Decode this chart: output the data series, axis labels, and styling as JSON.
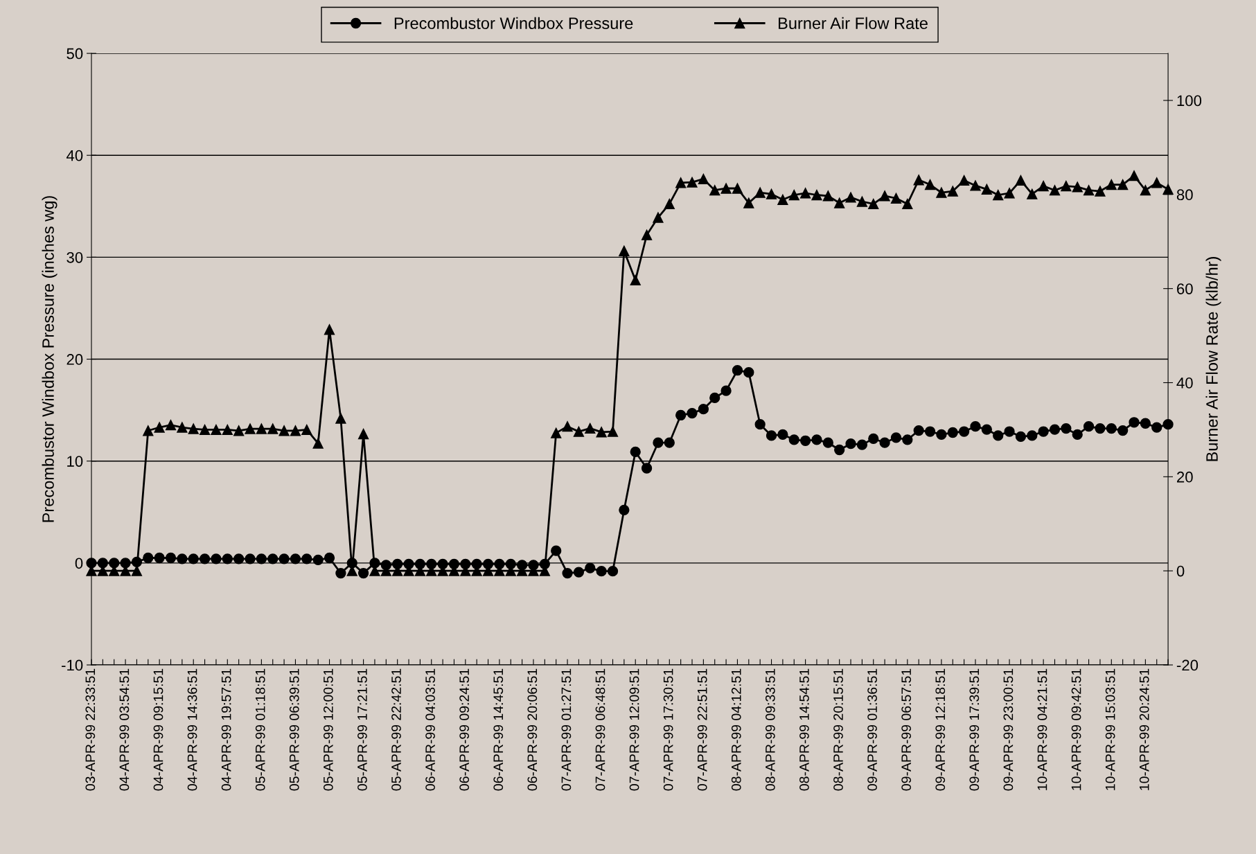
{
  "chart_data": {
    "type": "line",
    "ylabel": "Precombustor Windbox Pressure (inches wg)",
    "y2label": "Burner Air Flow Rate (klb/hr)",
    "categories": [
      "03-APR-99 22:33:51",
      null,
      null,
      "04-APR-99 03:54:51",
      null,
      null,
      "04-APR-99 09:15:51",
      null,
      null,
      "04-APR-99 14:36:51",
      null,
      null,
      "04-APR-99 19:57:51",
      null,
      null,
      "05-APR-99 01:18:51",
      null,
      null,
      "05-APR-99 06:39:51",
      null,
      null,
      "05-APR-99 12:00:51",
      null,
      null,
      "05-APR-99 17:21:51",
      null,
      null,
      "05-APR-99 22:42:51",
      null,
      null,
      "06-APR-99 04:03:51",
      null,
      null,
      "06-APR-99 09:24:51",
      null,
      null,
      "06-APR-99 14:45:51",
      null,
      null,
      "06-APR-99 20:06:51",
      null,
      null,
      "07-APR-99 01:27:51",
      null,
      null,
      "07-APR-99 06:48:51",
      null,
      null,
      "07-APR-99 12:09:51",
      null,
      null,
      "07-APR-99 17:30:51",
      null,
      null,
      "07-APR-99 22:51:51",
      null,
      null,
      "08-APR-99 04:12:51",
      null,
      null,
      "08-APR-99 09:33:51",
      null,
      null,
      "08-APR-99 14:54:51",
      null,
      null,
      "08-APR-99 20:15:51",
      null,
      null,
      "09-APR-99 01:36:51",
      null,
      null,
      "09-APR-99 06:57:51",
      null,
      null,
      "09-APR-99 12:18:51",
      null,
      null,
      "09-APR-99 17:39:51",
      null,
      null,
      "09-APR-99 23:00:51",
      null,
      null,
      "10-APR-99 04:21:51",
      null,
      null,
      "10-APR-99 09:42:51",
      null,
      null,
      "10-APR-99 15:03:51",
      null,
      null,
      "10-APR-99 20:24:51",
      null,
      null
    ],
    "series": [
      {
        "name": "Precombustor Windbox Pressure",
        "color": "#000000",
        "marker": "circle",
        "values": [
          0,
          0,
          0,
          0,
          0.1,
          0.5,
          0.5,
          0.5,
          0.4,
          0.4,
          0.4,
          0.4,
          0.4,
          0.4,
          0.4,
          0.4,
          0.4,
          0.4,
          0.4,
          0.4,
          0.3,
          0.5,
          -1.0,
          0,
          -1.0,
          0,
          -0.2,
          -0.1,
          -0.1,
          -0.1,
          -0.1,
          -0.1,
          -0.1,
          -0.1,
          -0.1,
          -0.1,
          -0.1,
          -0.1,
          -0.2,
          -0.2,
          -0.1,
          1.2,
          -1.0,
          -0.9,
          -0.5,
          -0.8,
          -0.8,
          5.2,
          10.9,
          9.3,
          11.8,
          11.8,
          14.5,
          14.7,
          15.1,
          16.2,
          16.9,
          18.9,
          18.7,
          13.6,
          12.5,
          12.6,
          12.1,
          12.0,
          12.1,
          11.8,
          11.1,
          11.7,
          11.6,
          12.2,
          11.8,
          12.3,
          12.1,
          13.0,
          12.9,
          12.6,
          12.8,
          12.9,
          13.4,
          13.1,
          12.5,
          12.9,
          12.4,
          12.5,
          12.9,
          13.1,
          13.2,
          12.6,
          13.4,
          13.2,
          13.2,
          13.0,
          13.8,
          13.7,
          13.3,
          13.6
        ]
      },
      {
        "name": "Burner Air Flow Rate",
        "color": "#000000",
        "marker": "triangle",
        "axis": "y2",
        "values": [
          0,
          0,
          0,
          0,
          0,
          29.8,
          30.5,
          31.0,
          30.5,
          30.2,
          30.0,
          30.0,
          30.0,
          29.8,
          30.2,
          30.2,
          30.2,
          29.8,
          29.8,
          30.0,
          27.1,
          51.3,
          32.4,
          0,
          29.1,
          0,
          0,
          0,
          0,
          0,
          0,
          0,
          0,
          0,
          0,
          0,
          0,
          0,
          0,
          0,
          0,
          29.3,
          30.7,
          29.6,
          30.3,
          29.5,
          29.6,
          68.0,
          61.8,
          71.4,
          75.1,
          78.0,
          82.5,
          82.6,
          83.3,
          80.9,
          81.3,
          81.3,
          78.2,
          80.4,
          80.1,
          78.9,
          79.9,
          80.3,
          79.9,
          79.7,
          78.2,
          79.4,
          78.5,
          78.0,
          79.7,
          79.2,
          78.0,
          83.1,
          82.1,
          80.4,
          80.7,
          83.0,
          81.9,
          81.1,
          79.9,
          80.3,
          83.0,
          80.1,
          81.8,
          80.9,
          81.8,
          81.6,
          80.9,
          80.7,
          82.1,
          82.1,
          84.0,
          80.9,
          82.5,
          81.1
        ]
      }
    ],
    "ylim": [
      -10,
      50
    ],
    "yticks": [
      -10,
      0,
      10,
      20,
      30,
      40,
      50
    ],
    "y2lim": [
      -20,
      110
    ],
    "y2ticks": [
      -20,
      0,
      20,
      40,
      60,
      80,
      100
    ],
    "grid": "y",
    "legend": "top",
    "line_style": "solid"
  }
}
